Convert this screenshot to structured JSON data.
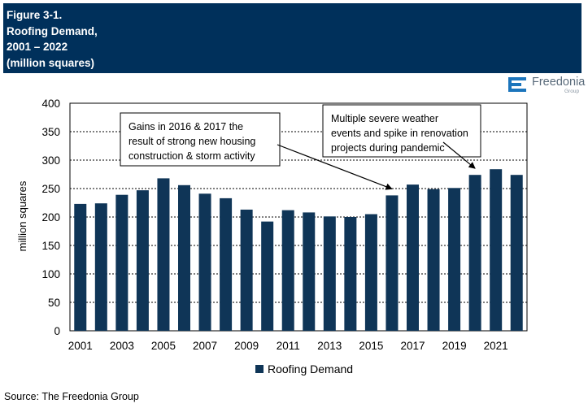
{
  "header": {
    "lines": [
      "Figure 3-1.",
      "Roofing Demand,",
      "2001 – 2022",
      "(million squares)"
    ]
  },
  "logo": {
    "name": "Freedonia",
    "sub": "Group",
    "icon": "freedonia-logo-icon"
  },
  "source": "Source: The Freedonia Group",
  "colors": {
    "bar": "#0f3557",
    "header_bg": "#00305b",
    "logo_blue": "#1c75bc"
  },
  "chart_data": {
    "type": "bar",
    "categories": [
      "2001",
      "2002",
      "2003",
      "2004",
      "2005",
      "2006",
      "2007",
      "2008",
      "2009",
      "2010",
      "2011",
      "2012",
      "2013",
      "2014",
      "2015",
      "2016",
      "2017",
      "2018",
      "2019",
      "2020",
      "2021",
      "2022"
    ],
    "series": [
      {
        "name": "Roofing Demand",
        "values": [
          223,
          224,
          239,
          247,
          268,
          256,
          241,
          233,
          213,
          192,
          212,
          208,
          201,
          200,
          205,
          238,
          257,
          249,
          251,
          274,
          284,
          274
        ]
      }
    ],
    "xtick_labels": [
      "2001",
      "2003",
      "2005",
      "2007",
      "2009",
      "2011",
      "2013",
      "2015",
      "2017",
      "2019",
      "2021"
    ],
    "yticks": [
      0,
      50,
      100,
      150,
      200,
      250,
      300,
      350,
      400
    ],
    "ylim": [
      0,
      400
    ],
    "ylabel": "million squares",
    "xlabel": "",
    "grid": "horizontal dashed",
    "legend_position": "bottom",
    "annotations": [
      {
        "text_lines": [
          "Gains in 2016 & 2017 the",
          "result of strong new housing",
          "construction & storm activity"
        ],
        "points_to": "2016"
      },
      {
        "text_lines": [
          "Multiple severe weather",
          "events and spike in renovation",
          "projects during pandemic"
        ],
        "points_to": "2020"
      }
    ]
  }
}
